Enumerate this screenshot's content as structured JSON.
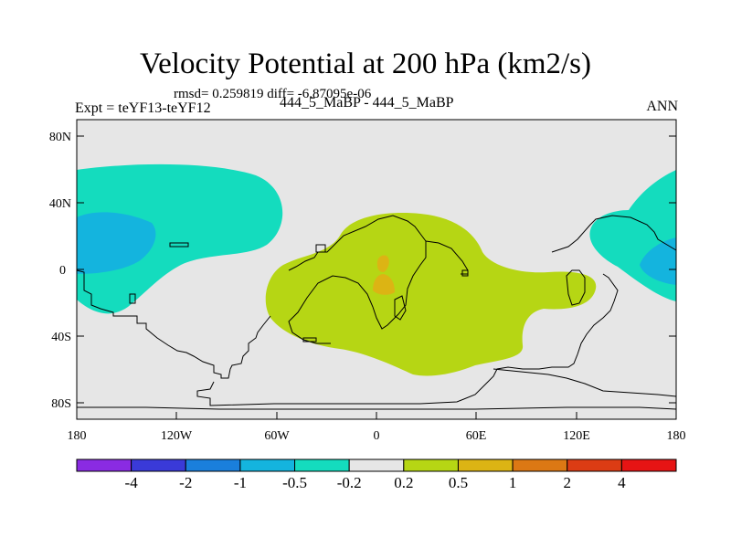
{
  "title": "Velocity Potential at 200 hPa (km2/s)",
  "stats": "rmsd= 0.259819 diff= -6.87095e-06",
  "left_label": "Expt = teYF13-teYF12",
  "center_label": "444_5_MaBP - 444_5_MaBP",
  "right_label": "ANN",
  "y_ticks": [
    "80N",
    "40N",
    "0",
    "40S",
    "80S"
  ],
  "x_ticks": [
    "180",
    "120W",
    "60W",
    "0",
    "60E",
    "120E",
    "180"
  ],
  "colorbar": {
    "colors": [
      "#8a2be2",
      "#3a3ad8",
      "#1a7fdc",
      "#14b4de",
      "#14dcbe",
      "#e6e6e6",
      "#b6d614",
      "#dcb414",
      "#dc7814",
      "#dc3c14",
      "#e61414"
    ],
    "labels": [
      "-4",
      "-2",
      "-1",
      "-0.5",
      "-0.2",
      "0.2",
      "0.5",
      "1",
      "2",
      "4"
    ]
  },
  "colors": {
    "background": "#e6e6e6",
    "teal": "#14dcbe",
    "cyan": "#14b4de",
    "blue": "#1a8cdc",
    "lime": "#b6d614",
    "orange": "#dcb414",
    "coast": "#000000"
  }
}
